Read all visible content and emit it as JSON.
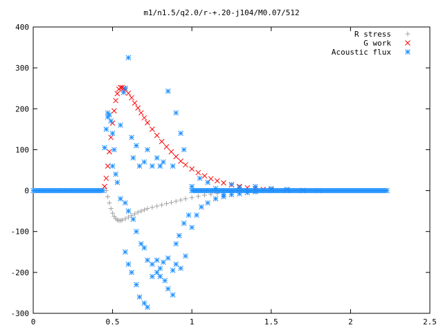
{
  "chart_data": {
    "type": "scatter",
    "title": "m1/n1.5/q2.0/r-+.20-j104/M0.07/512",
    "xlabel": "",
    "ylabel": "",
    "xlim": [
      0,
      2.5
    ],
    "ylim": [
      -300,
      400
    ],
    "x_ticks": [
      "0",
      "0.5",
      "1",
      "1.5",
      "2",
      "2.5"
    ],
    "y_ticks": [
      "-300",
      "-200",
      "-100",
      "0",
      "100",
      "200",
      "300",
      "400"
    ],
    "grid": false,
    "legend_position": "top-right",
    "series": [
      {
        "name": "R stress",
        "marker": "+",
        "color": "#a0a0a4",
        "x": [
          0.46,
          0.47,
          0.48,
          0.49,
          0.5,
          0.51,
          0.52,
          0.53,
          0.54,
          0.55,
          0.56,
          0.58,
          0.6,
          0.62,
          0.64,
          0.66,
          0.68,
          0.7,
          0.72,
          0.75,
          0.78,
          0.81,
          0.84,
          0.87,
          0.9,
          0.93,
          0.96,
          1.0,
          1.04,
          1.08,
          1.12,
          1.16,
          1.2,
          1.25,
          1.3,
          1.35,
          1.4,
          1.45,
          1.5,
          1.6,
          1.7,
          1.8
        ],
        "y": [
          0,
          -15,
          -30,
          -44,
          -55,
          -63,
          -68,
          -72,
          -73,
          -73,
          -72,
          -69,
          -65,
          -61,
          -57,
          -53,
          -50,
          -47,
          -44,
          -41,
          -38,
          -35,
          -32,
          -29,
          -26,
          -23,
          -20,
          -17,
          -14,
          -11,
          -9,
          -7,
          -5,
          -3.5,
          -2.5,
          -1.5,
          -1,
          -0.5,
          -0.3,
          -0.1,
          0,
          0
        ]
      },
      {
        "name": "G work",
        "marker": "x",
        "color": "#ff0000",
        "x": [
          0.45,
          0.46,
          0.47,
          0.48,
          0.49,
          0.5,
          0.51,
          0.52,
          0.53,
          0.54,
          0.55,
          0.56,
          0.57,
          0.58,
          0.6,
          0.62,
          0.64,
          0.66,
          0.68,
          0.7,
          0.72,
          0.75,
          0.78,
          0.81,
          0.84,
          0.87,
          0.9,
          0.93,
          0.96,
          1.0,
          1.04,
          1.08,
          1.12,
          1.16,
          1.2,
          1.25,
          1.3,
          1.35,
          1.4,
          1.45,
          1.5,
          1.6,
          1.7,
          1.8
        ],
        "y": [
          10,
          30,
          60,
          95,
          130,
          165,
          195,
          220,
          237,
          248,
          252,
          252,
          250,
          246,
          238,
          227,
          214,
          202,
          190,
          178,
          166,
          150,
          135,
          120,
          107,
          95,
          83,
          72,
          63,
          53,
          44,
          36,
          29,
          24,
          19,
          14,
          10,
          7,
          5,
          3,
          2,
          1,
          0.5,
          0
        ]
      },
      {
        "name": "Acoustic flux",
        "marker": "*",
        "color": "#1e90ff",
        "x": [
          0.45,
          0.46,
          0.47,
          0.47,
          0.48,
          0.49,
          0.5,
          0.5,
          0.51,
          0.52,
          0.53,
          0.55,
          0.57,
          0.58,
          0.6,
          0.62,
          0.63,
          0.65,
          0.67,
          0.7,
          0.72,
          0.75,
          0.78,
          0.8,
          0.82,
          0.85,
          0.88,
          0.9,
          0.93,
          0.95,
          0.55,
          0.58,
          0.6,
          0.63,
          0.65,
          0.68,
          0.7,
          0.72,
          0.75,
          0.78,
          0.8,
          0.83,
          0.85,
          0.88,
          0.9,
          0.93,
          0.96,
          1.0,
          1.03,
          1.06,
          1.1,
          1.15,
          1.2,
          1.25,
          1.3,
          1.35,
          1.4,
          0.58,
          0.6,
          0.62,
          0.65,
          0.67,
          0.7,
          0.72,
          0.75,
          0.78,
          0.8,
          0.82,
          0.85,
          0.88,
          0.9,
          0.92,
          0.95,
          0.98,
          1.0,
          1.05,
          1.1,
          1.15,
          1.2,
          1.25,
          1.3,
          1.4,
          1.5,
          1.6,
          1.7
        ],
        "y": [
          105,
          150,
          180,
          190,
          185,
          170,
          140,
          60,
          100,
          40,
          20,
          160,
          240,
          250,
          325,
          130,
          80,
          110,
          60,
          70,
          100,
          60,
          80,
          60,
          70,
          243,
          60,
          190,
          140,
          100,
          -20,
          -30,
          -50,
          -70,
          -100,
          -130,
          -140,
          -170,
          -180,
          -200,
          -210,
          -220,
          -240,
          -255,
          -180,
          -190,
          -160,
          -90,
          -60,
          -40,
          -30,
          -20,
          -15,
          -10,
          -8,
          -5,
          -3,
          -150,
          -180,
          -200,
          -230,
          -260,
          -275,
          -285,
          -210,
          -170,
          -190,
          -175,
          -165,
          -195,
          -130,
          -110,
          -80,
          -60,
          10,
          30,
          20,
          5,
          -10,
          15,
          8,
          10,
          5,
          3,
          0
        ]
      }
    ]
  }
}
